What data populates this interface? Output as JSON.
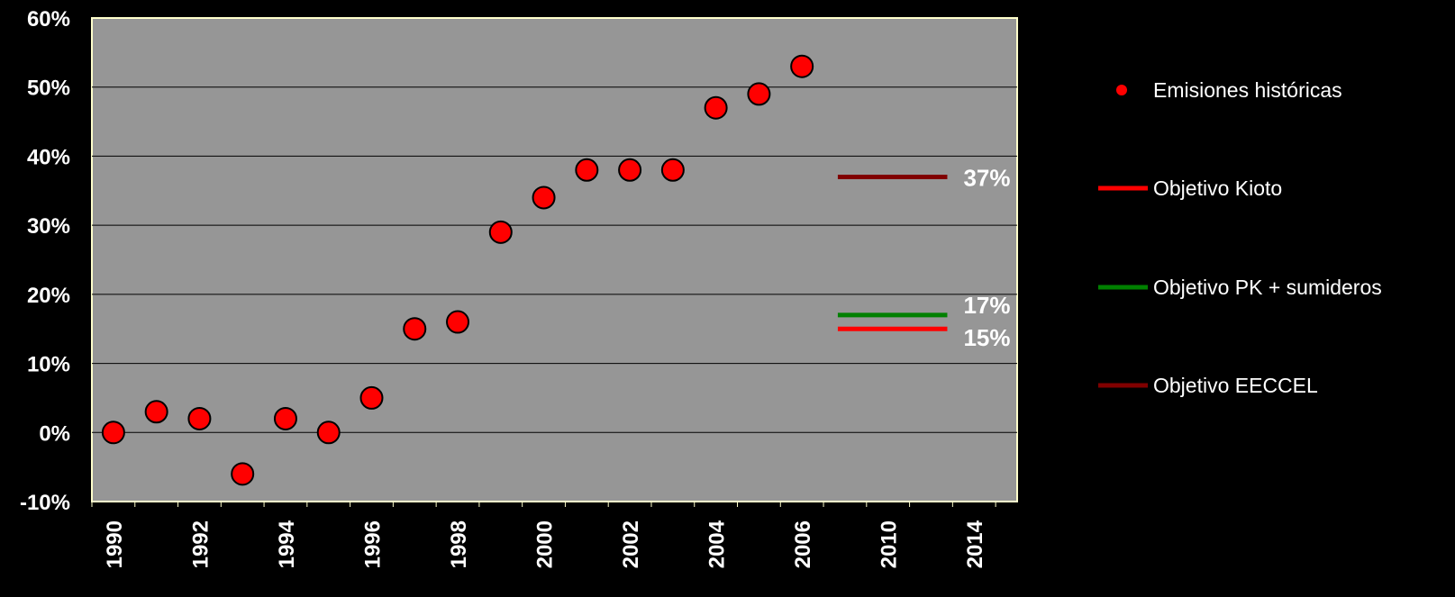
{
  "chart_data": {
    "type": "scatter",
    "title": "",
    "xlabel": "",
    "ylabel": "",
    "ylim": [
      -0.1,
      0.6
    ],
    "y_tick_labels": [
      "-10%",
      "0%",
      "10%",
      "20%",
      "30%",
      "40%",
      "50%",
      "60%"
    ],
    "x_tick_labels": [
      "1990",
      "1992",
      "1994",
      "1996",
      "1998",
      "2000",
      "2002",
      "2004",
      "2006",
      "2010",
      "2014"
    ],
    "grid": true,
    "legend_position": "right",
    "colors": {
      "plot_background": "#969696",
      "page_background": "#000000",
      "plot_border": "#ffffcc",
      "historic": "#ff0000",
      "kioto": "#ff0000",
      "pk": "#008000",
      "eeccel": "#800000"
    },
    "series": [
      {
        "name": "Emisiones históricas",
        "kind": "points",
        "x": [
          1990,
          1991,
          1992,
          1993,
          1994,
          1995,
          1996,
          1997,
          1998,
          1999,
          2000,
          2001,
          2002,
          2003,
          2004,
          2005,
          2006
        ],
        "y": [
          0.0,
          0.03,
          0.02,
          -0.06,
          0.02,
          0.0,
          0.05,
          0.15,
          0.16,
          0.29,
          0.34,
          0.38,
          0.38,
          0.38,
          0.47,
          0.49,
          0.53
        ]
      },
      {
        "name": "Objetivo Kioto",
        "kind": "target",
        "x": [
          2008,
          2012
        ],
        "y": 0.15,
        "label": "15%"
      },
      {
        "name": "Objetivo PK + sumideros",
        "kind": "target",
        "x": [
          2008,
          2012
        ],
        "y": 0.17,
        "label": "17%"
      },
      {
        "name": "Objetivo EECCEL",
        "kind": "target",
        "x": [
          2008,
          2012
        ],
        "y": 0.37,
        "label": "37%"
      }
    ]
  }
}
